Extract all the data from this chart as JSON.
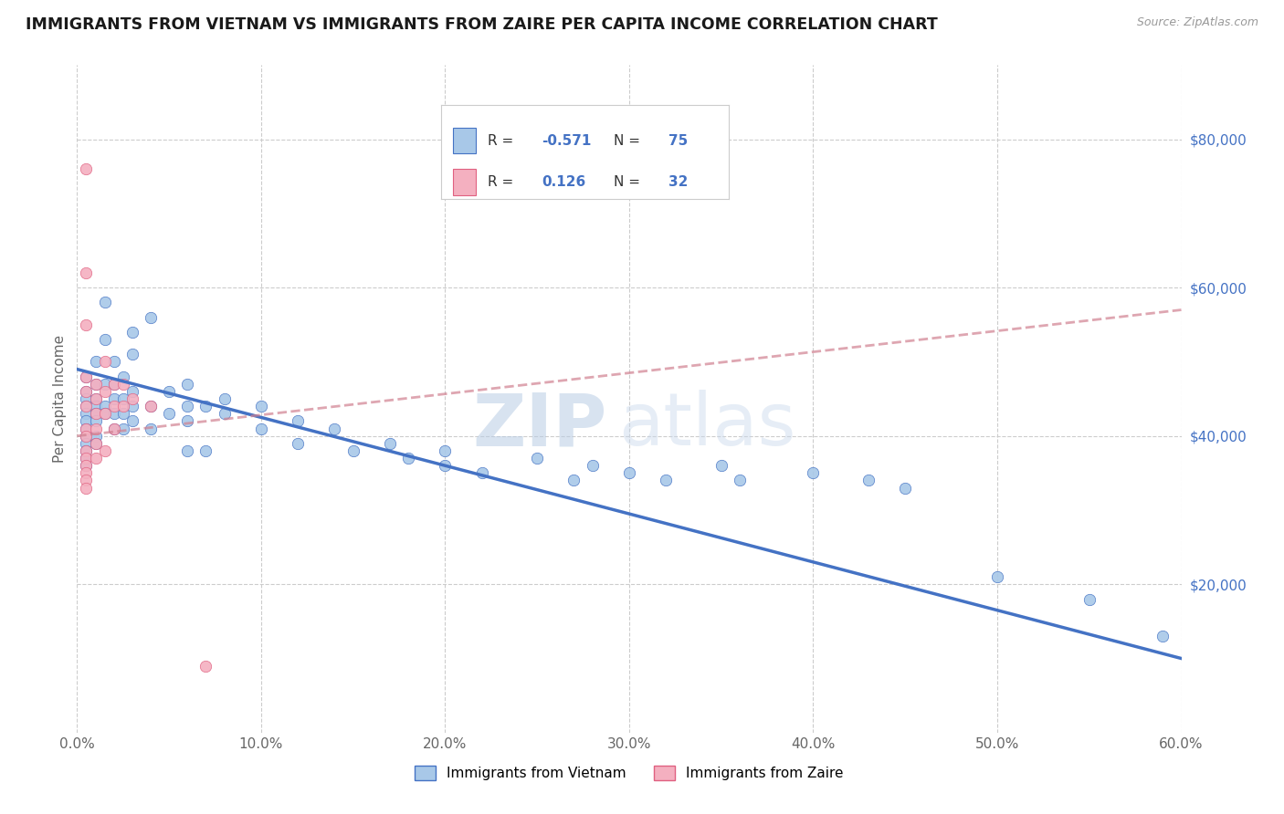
{
  "title": "IMMIGRANTS FROM VIETNAM VS IMMIGRANTS FROM ZAIRE PER CAPITA INCOME CORRELATION CHART",
  "source_text": "Source: ZipAtlas.com",
  "ylabel": "Per Capita Income",
  "xlim": [
    0.0,
    0.6
  ],
  "ylim": [
    0,
    90000
  ],
  "xtick_labels": [
    "0.0%",
    "10.0%",
    "20.0%",
    "30.0%",
    "40.0%",
    "50.0%",
    "60.0%"
  ],
  "xtick_values": [
    0.0,
    0.1,
    0.2,
    0.3,
    0.4,
    0.5,
    0.6
  ],
  "ytick_values": [
    0,
    20000,
    40000,
    60000,
    80000
  ],
  "color_vietnam": "#a8c8e8",
  "color_zaire": "#f4b0c0",
  "line_color_vietnam": "#4472c4",
  "line_color_zaire": "#e06080",
  "line_color_zaire_trend": "#d08090",
  "watermark_zip": "ZIP",
  "watermark_atlas": "atlas",
  "background_color": "#ffffff",
  "grid_color": "#cccccc",
  "vietnam_scatter": [
    [
      0.005,
      48000
    ],
    [
      0.005,
      46000
    ],
    [
      0.005,
      45000
    ],
    [
      0.005,
      44000
    ],
    [
      0.005,
      43000
    ],
    [
      0.005,
      42000
    ],
    [
      0.005,
      41000
    ],
    [
      0.005,
      40000
    ],
    [
      0.005,
      39000
    ],
    [
      0.005,
      38000
    ],
    [
      0.005,
      37000
    ],
    [
      0.005,
      36000
    ],
    [
      0.01,
      50000
    ],
    [
      0.01,
      47000
    ],
    [
      0.01,
      45000
    ],
    [
      0.01,
      44000
    ],
    [
      0.01,
      43000
    ],
    [
      0.01,
      42000
    ],
    [
      0.01,
      40000
    ],
    [
      0.01,
      39000
    ],
    [
      0.015,
      58000
    ],
    [
      0.015,
      53000
    ],
    [
      0.015,
      47000
    ],
    [
      0.015,
      44000
    ],
    [
      0.015,
      43000
    ],
    [
      0.02,
      50000
    ],
    [
      0.02,
      47000
    ],
    [
      0.02,
      45000
    ],
    [
      0.02,
      43000
    ],
    [
      0.02,
      41000
    ],
    [
      0.025,
      48000
    ],
    [
      0.025,
      45000
    ],
    [
      0.025,
      43000
    ],
    [
      0.025,
      41000
    ],
    [
      0.03,
      54000
    ],
    [
      0.03,
      51000
    ],
    [
      0.03,
      46000
    ],
    [
      0.03,
      44000
    ],
    [
      0.03,
      42000
    ],
    [
      0.04,
      56000
    ],
    [
      0.04,
      44000
    ],
    [
      0.04,
      41000
    ],
    [
      0.05,
      46000
    ],
    [
      0.05,
      43000
    ],
    [
      0.06,
      47000
    ],
    [
      0.06,
      44000
    ],
    [
      0.06,
      42000
    ],
    [
      0.06,
      38000
    ],
    [
      0.07,
      44000
    ],
    [
      0.07,
      38000
    ],
    [
      0.08,
      45000
    ],
    [
      0.08,
      43000
    ],
    [
      0.1,
      44000
    ],
    [
      0.1,
      41000
    ],
    [
      0.12,
      42000
    ],
    [
      0.12,
      39000
    ],
    [
      0.14,
      41000
    ],
    [
      0.15,
      38000
    ],
    [
      0.17,
      39000
    ],
    [
      0.18,
      37000
    ],
    [
      0.2,
      36000
    ],
    [
      0.2,
      38000
    ],
    [
      0.22,
      35000
    ],
    [
      0.25,
      37000
    ],
    [
      0.27,
      34000
    ],
    [
      0.28,
      36000
    ],
    [
      0.3,
      35000
    ],
    [
      0.32,
      34000
    ],
    [
      0.35,
      36000
    ],
    [
      0.36,
      34000
    ],
    [
      0.4,
      35000
    ],
    [
      0.43,
      34000
    ],
    [
      0.45,
      33000
    ],
    [
      0.5,
      21000
    ],
    [
      0.55,
      18000
    ],
    [
      0.59,
      13000
    ]
  ],
  "zaire_scatter": [
    [
      0.005,
      76000
    ],
    [
      0.005,
      62000
    ],
    [
      0.005,
      55000
    ],
    [
      0.005,
      48000
    ],
    [
      0.005,
      46000
    ],
    [
      0.005,
      44000
    ],
    [
      0.005,
      41000
    ],
    [
      0.005,
      40000
    ],
    [
      0.005,
      38000
    ],
    [
      0.005,
      37000
    ],
    [
      0.005,
      36000
    ],
    [
      0.005,
      35000
    ],
    [
      0.005,
      34000
    ],
    [
      0.005,
      33000
    ],
    [
      0.01,
      47000
    ],
    [
      0.01,
      45000
    ],
    [
      0.01,
      43000
    ],
    [
      0.01,
      41000
    ],
    [
      0.01,
      39000
    ],
    [
      0.01,
      37000
    ],
    [
      0.015,
      50000
    ],
    [
      0.015,
      46000
    ],
    [
      0.015,
      43000
    ],
    [
      0.015,
      38000
    ],
    [
      0.02,
      47000
    ],
    [
      0.02,
      44000
    ],
    [
      0.02,
      41000
    ],
    [
      0.025,
      47000
    ],
    [
      0.025,
      44000
    ],
    [
      0.03,
      45000
    ],
    [
      0.04,
      44000
    ],
    [
      0.07,
      9000
    ]
  ],
  "viet_trend_x": [
    0.0,
    0.6
  ],
  "viet_trend_y": [
    49000,
    10000
  ],
  "zaire_trend_x": [
    0.0,
    0.6
  ],
  "zaire_trend_y": [
    40000,
    57000
  ]
}
